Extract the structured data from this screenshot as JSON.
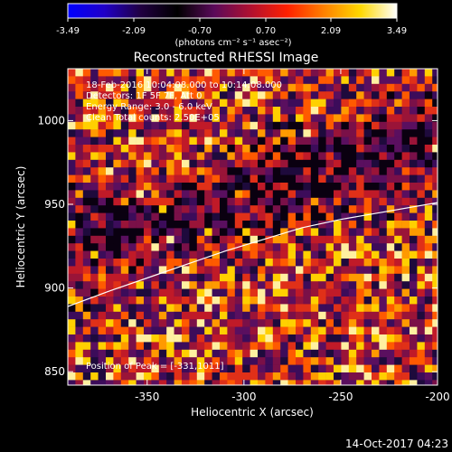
{
  "colorbar": {
    "tick_labels": [
      "-3.49",
      "-2.09",
      "-0.70",
      "0.70",
      "2.09",
      "3.49"
    ],
    "units": "(photons cm⁻² s⁻¹ asec⁻²)",
    "colormap": [
      "#0000ff",
      "#2000c8",
      "#200040",
      "#000000",
      "#5a0a5a",
      "#b01030",
      "#ff2000",
      "#ff8000",
      "#ffd800",
      "#ffffff"
    ]
  },
  "chart_data": {
    "type": "heatmap",
    "title": "Reconstructed RHESSI Image",
    "xlabel": "Heliocentric X (arcsec)",
    "ylabel": "Heliocentric Y (arcsec)",
    "xlim": [
      -391,
      -200
    ],
    "ylim": [
      842,
      1031
    ],
    "x_ticks": [
      -350,
      -300,
      -250,
      -200
    ],
    "y_ticks": [
      850,
      900,
      950,
      1000
    ],
    "annotations": {
      "line1": "18-Feb-2016 10:04:08.000 to 10:14:08.000",
      "line2": "Detectors: 1F 5F 7F, Att 0",
      "line3": "Energy Range: 3.0 - 6.0 keV",
      "line4": "Clean    Total counts: 2.50E+05",
      "peak": "Position of Peak = [-331,1011]"
    },
    "limb_curve": {
      "x": [
        -391,
        -370,
        -350,
        -330,
        -310,
        -290,
        -270,
        -250,
        -230,
        -200
      ],
      "y": [
        889,
        898,
        906,
        914,
        922,
        929,
        936,
        941,
        945,
        951
      ]
    },
    "peak_position": [
      -331,
      1011
    ],
    "grid": false
  },
  "footer": {
    "timestamp": "14-Oct-2017 04:23"
  }
}
